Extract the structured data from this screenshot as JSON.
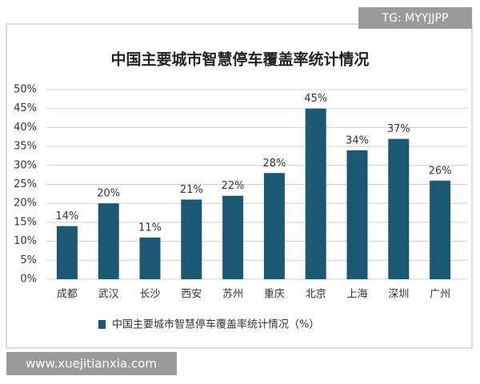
{
  "chart_data": {
    "type": "bar",
    "title": "中国主要城市智慧停车覆盖率统计情况",
    "categories": [
      "成都",
      "武汉",
      "长沙",
      "西安",
      "苏州",
      "重庆",
      "北京",
      "上海",
      "深圳",
      "广州"
    ],
    "series": [
      {
        "name": "中国主要城市智慧停车覆盖率统计情况（%）",
        "color": "#1b5873",
        "values": [
          14,
          20,
          11,
          21,
          22,
          28,
          45,
          34,
          37,
          26
        ],
        "value_labels": [
          "14%",
          "20%",
          "11%",
          "21%",
          "22%",
          "28%",
          "45%",
          "34%",
          "37%",
          "26%"
        ]
      }
    ],
    "ylim": [
      0,
      50
    ],
    "yticks": [
      {
        "value": 0,
        "label": "0%"
      },
      {
        "value": 5,
        "label": "5%"
      },
      {
        "value": 10,
        "label": "10%"
      },
      {
        "value": 15,
        "label": "15%"
      },
      {
        "value": 20,
        "label": "20%"
      },
      {
        "value": 25,
        "label": "25%"
      },
      {
        "value": 30,
        "label": "30%"
      },
      {
        "value": 35,
        "label": "35%"
      },
      {
        "value": 40,
        "label": "40%"
      },
      {
        "value": 45,
        "label": "45%"
      },
      {
        "value": 50,
        "label": "50%"
      }
    ],
    "grid": true,
    "legend": "bottom"
  },
  "watermark": "TG: MYYJJPP",
  "source_url": "www.xuejitianxia.com"
}
